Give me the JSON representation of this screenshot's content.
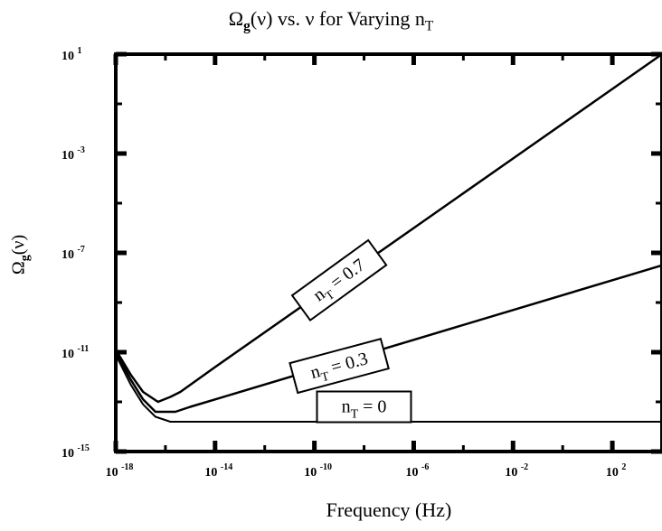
{
  "chart_data": {
    "type": "line",
    "title": {
      "omega": "Ω",
      "omega_sub": "g",
      "mid": "(ν) vs. ν for Varying n",
      "n_sub": "T"
    },
    "xlabel": "Frequency (Hz)",
    "ylabel": {
      "omega": "Ω",
      "sub": "g",
      "rest": "(ν)"
    },
    "x_scale": "log",
    "y_scale": "log",
    "xlim_exp": [
      -18,
      4
    ],
    "ylim_exp": [
      -15,
      1
    ],
    "x_ticks": [
      {
        "base": "10",
        "exp": "-18",
        "value_exp": -18
      },
      {
        "base": "10",
        "exp": "-14",
        "value_exp": -14
      },
      {
        "base": "10",
        "exp": "-10",
        "value_exp": -10
      },
      {
        "base": "10",
        "exp": "-6",
        "value_exp": -6
      },
      {
        "base": "10",
        "exp": "-2",
        "value_exp": -2
      },
      {
        "base": "10",
        "exp": "2",
        "value_exp": 2
      }
    ],
    "y_ticks": [
      {
        "base": "10",
        "exp": "1",
        "value_exp": 1
      },
      {
        "base": "10",
        "exp": "-3",
        "value_exp": -3
      },
      {
        "base": "10",
        "exp": "-7",
        "value_exp": -7
      },
      {
        "base": "10",
        "exp": "-11",
        "value_exp": -11
      },
      {
        "base": "10",
        "exp": "-15",
        "value_exp": -15
      }
    ],
    "grid": false,
    "series": [
      {
        "name": "n_T = 0.7",
        "label": {
          "n": "n",
          "sub": "T",
          "rest": " = 0.7"
        },
        "points_log10": [
          [
            -18,
            -10.9
          ],
          [
            -17.4,
            -11.9
          ],
          [
            -16.9,
            -12.6
          ],
          [
            -16.3,
            -13.0
          ],
          [
            -15.8,
            -12.8
          ],
          [
            -15.4,
            -12.6
          ],
          [
            -14,
            -11.6
          ],
          [
            -10,
            -8.8
          ],
          [
            -6,
            -6.0
          ],
          [
            -2,
            -3.2
          ],
          [
            2,
            -0.4
          ],
          [
            4,
            1.0
          ]
        ]
      },
      {
        "name": "n_T = 0.3",
        "label": {
          "n": "n",
          "sub": "T",
          "rest": " = 0.3"
        },
        "points_log10": [
          [
            -18,
            -11.0
          ],
          [
            -17.4,
            -12.1
          ],
          [
            -16.9,
            -12.9
          ],
          [
            -16.4,
            -13.4
          ],
          [
            -15.6,
            -13.4
          ],
          [
            -15.0,
            -13.2
          ],
          [
            -14,
            -12.9
          ],
          [
            -10,
            -11.7
          ],
          [
            -6,
            -10.5
          ],
          [
            -2,
            -9.3
          ],
          [
            2,
            -8.1
          ],
          [
            4,
            -7.5
          ]
        ]
      },
      {
        "name": "n_T = 0",
        "label": {
          "n": "n",
          "sub": "T",
          "rest": " = 0"
        },
        "points_log10": [
          [
            -18,
            -11.1
          ],
          [
            -17.4,
            -12.3
          ],
          [
            -16.9,
            -13.1
          ],
          [
            -16.4,
            -13.6
          ],
          [
            -15.8,
            -13.8
          ],
          [
            -15.0,
            -13.8
          ],
          [
            -10,
            -13.8
          ],
          [
            -6,
            -13.8
          ],
          [
            -2,
            -13.8
          ],
          [
            2,
            -13.8
          ],
          [
            4,
            -13.8
          ]
        ]
      }
    ]
  }
}
